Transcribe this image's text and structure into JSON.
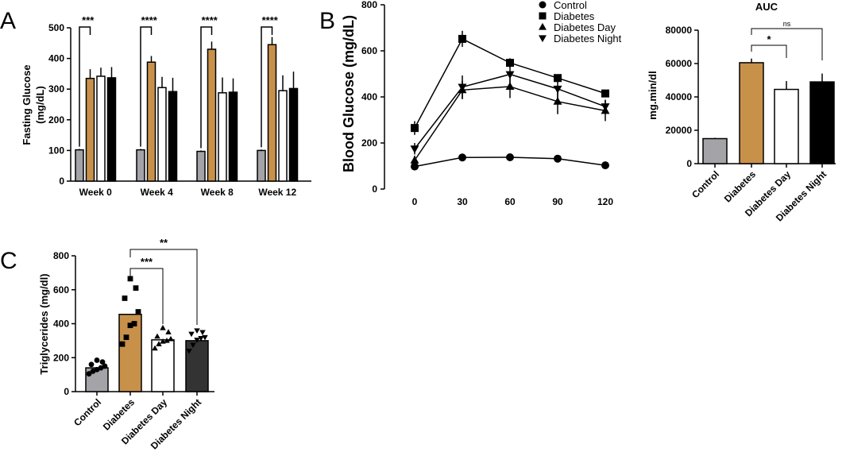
{
  "colors": {
    "control": "#a3a3a8",
    "diabetes": "#c8914a",
    "day": "#ffffff",
    "night": "#000000",
    "night_dark": "#333333",
    "axis": "#000000"
  },
  "panel_letters": {
    "a": "A",
    "b": "B",
    "c": "C"
  },
  "chart_data": [
    {
      "id": "A",
      "type": "bar",
      "title": "",
      "ylabel_line1": "Fasting Glucose",
      "ylabel_line2": "(mg/dL)",
      "xlabel": "",
      "ylim": [
        0,
        500
      ],
      "yticks": [
        "0",
        "100",
        "200",
        "300",
        "400",
        "500"
      ],
      "categories": [
        "Week 0",
        "Week 4",
        "Week 8",
        "Week 12"
      ],
      "series": [
        {
          "name": "Control",
          "color_key": "control",
          "values": [
            102,
            102,
            97,
            100
          ],
          "err": [
            3,
            3,
            3,
            3
          ]
        },
        {
          "name": "Diabetes",
          "color_key": "diabetes",
          "values": [
            335,
            388,
            430,
            445
          ],
          "err": [
            30,
            20,
            25,
            25
          ]
        },
        {
          "name": "Diabetes Day",
          "color_key": "day",
          "values": [
            342,
            305,
            288,
            295
          ],
          "err": [
            28,
            35,
            50,
            50
          ]
        },
        {
          "name": "Diabetes Night",
          "color_key": "night",
          "values": [
            337,
            292,
            290,
            302
          ],
          "err": [
            35,
            45,
            45,
            55
          ]
        }
      ],
      "significance": [
        "***",
        "****",
        "****",
        "****"
      ]
    },
    {
      "id": "B",
      "type": "line",
      "title": "",
      "ylabel": "Blood Glucose (mg/dL)",
      "xlabel": "",
      "x": [
        0,
        30,
        60,
        90,
        120
      ],
      "xticks": [
        "0",
        "30",
        "60",
        "90",
        "120"
      ],
      "ylim": [
        0,
        800
      ],
      "yticks": [
        "0",
        "200",
        "400",
        "600",
        "800"
      ],
      "series": [
        {
          "name": "Control",
          "marker": "circle",
          "values": [
            98,
            137,
            138,
            132,
            103
          ],
          "err": [
            5,
            5,
            5,
            5,
            5
          ]
        },
        {
          "name": "Diabetes",
          "marker": "square",
          "values": [
            265,
            652,
            548,
            482,
            415
          ],
          "err": [
            30,
            35,
            20,
            10,
            10
          ]
        },
        {
          "name": "Diabetes Day",
          "marker": "triangle-up",
          "values": [
            125,
            430,
            445,
            380,
            340
          ],
          "err": [
            20,
            40,
            50,
            55,
            45
          ]
        },
        {
          "name": "Diabetes Night",
          "marker": "triangle-down",
          "values": [
            175,
            443,
            498,
            435,
            358
          ],
          "err": [
            25,
            50,
            40,
            50,
            30
          ]
        }
      ],
      "legend_position": "top-right"
    },
    {
      "id": "AUC",
      "type": "bar",
      "title": "AUC",
      "ylabel": "mg.min/dl",
      "xlabel": "",
      "ylim": [
        0,
        80000
      ],
      "yticks": [
        "0",
        "20000",
        "40000",
        "60000",
        "80000"
      ],
      "categories": [
        "Control",
        "Diabetes",
        "Diabetes Day",
        "Diabetes Night"
      ],
      "values": [
        15000,
        60500,
        44500,
        49000
      ],
      "err": [
        500,
        2500,
        5000,
        5000
      ],
      "color_keys": [
        "control",
        "diabetes",
        "day",
        "night"
      ],
      "brackets": [
        {
          "from": 1,
          "to": 2,
          "label": "*"
        },
        {
          "from": 1,
          "to": 3,
          "label": "ns"
        }
      ]
    },
    {
      "id": "C",
      "type": "bar",
      "title": "",
      "ylabel": "Triglycerides (mg/dl)",
      "xlabel": "",
      "ylim": [
        0,
        800
      ],
      "yticks": [
        "0",
        "200",
        "400",
        "600",
        "800"
      ],
      "categories": [
        "Control",
        "Diabetes",
        "Diabetes Day",
        "Diabetes Night"
      ],
      "values": [
        140,
        455,
        305,
        300
      ],
      "color_keys": [
        "control",
        "diabetes",
        "day",
        "night_dark"
      ],
      "markers": [
        "circle",
        "square",
        "triangle-up",
        "triangle-down"
      ],
      "points": [
        [
          105,
          120,
          130,
          140,
          150,
          160,
          175,
          185
        ],
        [
          280,
          320,
          390,
          400,
          470,
          550,
          610,
          665
        ],
        [
          255,
          280,
          295,
          300,
          310,
          325,
          350,
          375
        ],
        [
          240,
          275,
          305,
          315,
          320,
          340,
          350,
          360
        ]
      ],
      "brackets": [
        {
          "from": 1,
          "to": 2,
          "label": "***"
        },
        {
          "from": 1,
          "to": 3,
          "label": "**"
        }
      ]
    }
  ]
}
